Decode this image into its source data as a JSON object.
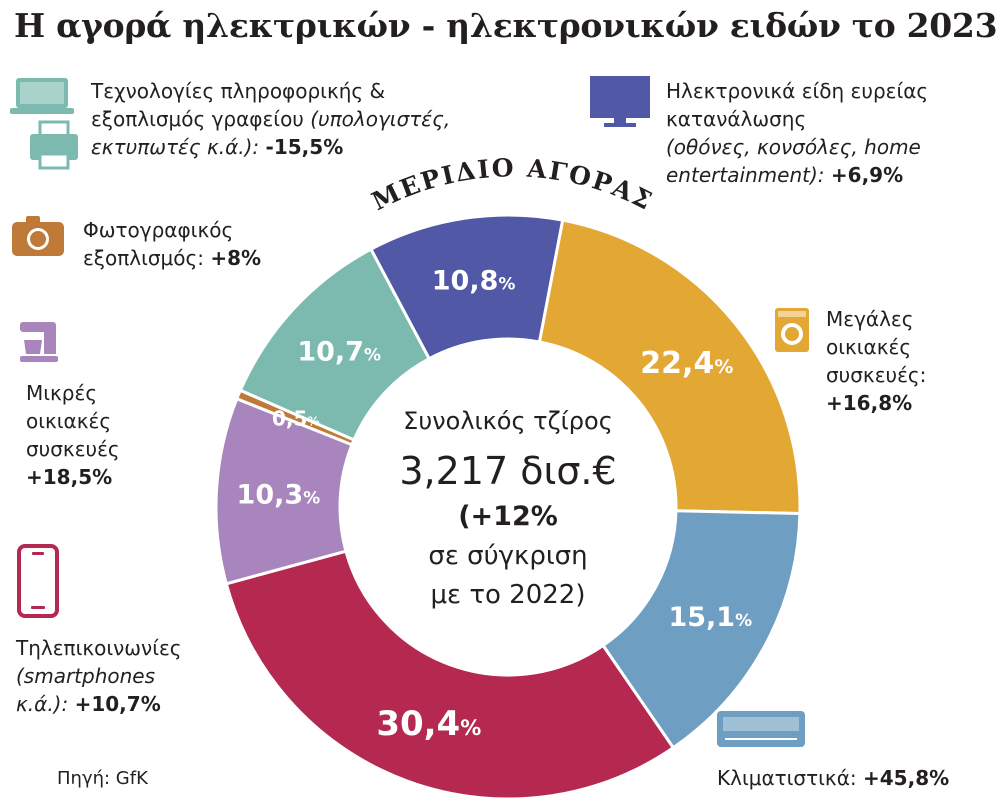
{
  "title": "Η αγορά ηλεκτρικών - ηλεκτρονικών ειδών το 2023",
  "arc_title": "ΜΕΡΙΔΙΟ ΑΓΟΡΑΣ",
  "center": {
    "line1": "Συνολικός τζίρος",
    "line2": "3,217 δισ.€",
    "line3": "(+12%",
    "line4": "σε σύγκριση",
    "line5": "με το 2022)"
  },
  "source": "Πηγή: GfK",
  "categories": {
    "it": {
      "l1": "Τεχνολογίες πληροφορικής &",
      "l2a": "εξοπλισμός γραφείου",
      "l2b": "(υπολογιστές,",
      "l3a": "εκτυπωτές κ.ά.):",
      "change": "-15,5%",
      "icon": "laptop-printer-icon"
    },
    "ce": {
      "l1": "Ηλεκτρονικά είδη ευρείας",
      "l2": "κατανάλωσης",
      "l3": "(οθόνες, κονσόλες, home",
      "l4a": "entertainment):",
      "change": "+6,9%",
      "icon": "tv-monitor-icon"
    },
    "photo": {
      "l1": "Φωτογραφικός",
      "l2a": "εξοπλισμός:",
      "change": "+8%",
      "icon": "camera-icon"
    },
    "major": {
      "l1": "Μεγάλες",
      "l2": "οικιακές",
      "l3": "συσκευές:",
      "change": "+16,8%",
      "icon": "washing-machine-icon"
    },
    "small": {
      "l1": "Μικρές",
      "l2": "οικιακές",
      "l3": "συσκευές",
      "change": "+18,5%",
      "icon": "food-mixer-icon"
    },
    "telecom": {
      "l1": "Τηλεπικοινωνίες",
      "l2": "(smartphones",
      "l3a": "κ.ά.):",
      "change": "+10,7%",
      "icon": "smartphone-icon"
    },
    "ac": {
      "l1": "Κλιματιστικά:",
      "change": "+45,8%",
      "icon": "air-conditioner-icon"
    }
  },
  "colors": {
    "ce": "#5159a6",
    "major": "#e3a733",
    "ac": "#6e9ec1",
    "telecom": "#b5284f",
    "small": "#a886bd",
    "photo": "#c07a38",
    "it": "#7cbab0"
  },
  "chart_data": {
    "type": "pie",
    "donut": true,
    "unit": "%",
    "series": [
      {
        "name": "Ηλεκτρονικά είδη ευρείας κατανάλωσης",
        "value": 10.8,
        "label": "10,8",
        "color": "#5159a6"
      },
      {
        "name": "Μεγάλες οικιακές συσκευές",
        "value": 22.4,
        "label": "22,4",
        "color": "#e3a733"
      },
      {
        "name": "Κλιματιστικά",
        "value": 15.1,
        "label": "15,1",
        "color": "#6e9ec1"
      },
      {
        "name": "Τηλεπικοινωνίες",
        "value": 30.4,
        "label": "30,4",
        "color": "#b5284f"
      },
      {
        "name": "Μικρές οικιακές συσκευές",
        "value": 10.3,
        "label": "10,3",
        "color": "#a886bd"
      },
      {
        "name": "Φωτογραφικός εξοπλισμός",
        "value": 0.5,
        "label": "0,5",
        "color": "#c07a38"
      },
      {
        "name": "Τεχνολογίες πληροφορικής & εξοπλισμός γραφείου",
        "value": 10.7,
        "label": "10,7",
        "color": "#7cbab0"
      }
    ]
  }
}
